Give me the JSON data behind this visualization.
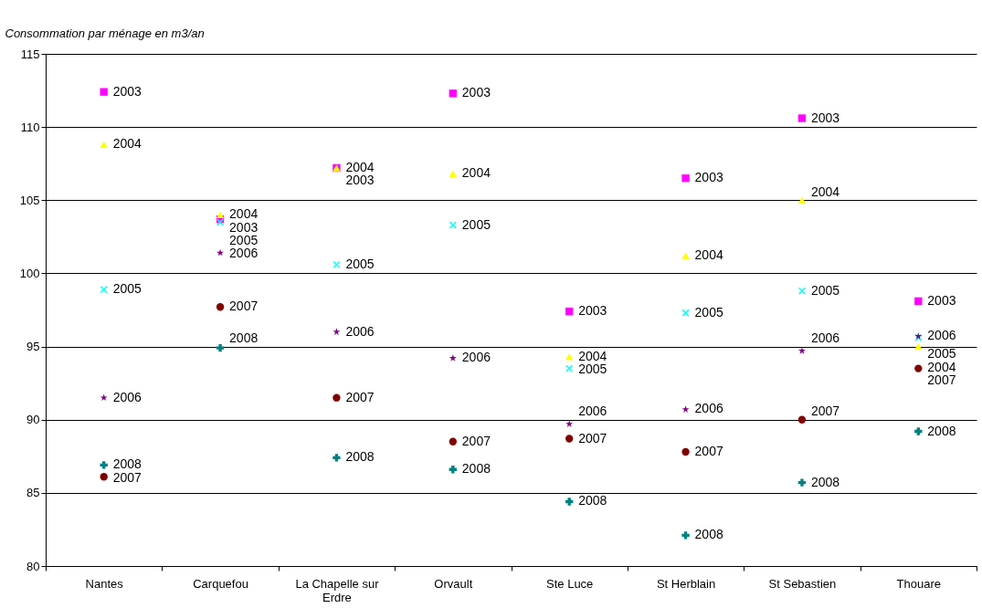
{
  "chart_data": {
    "type": "scatter",
    "ylabel": "Consommation par ménage en m3/an",
    "categories": [
      "Nantes",
      "Carquefou",
      "La Chapelle sur Erdre",
      "Orvault",
      "Ste Luce",
      "St Herblain",
      "St Sebastien",
      "Thouare"
    ],
    "series": [
      {
        "name": "2003",
        "color": "#ff00ff",
        "marker": "square",
        "values": [
          112.4,
          103.7,
          107.2,
          112.3,
          97.4,
          106.5,
          110.6,
          98.1
        ]
      },
      {
        "name": "2004",
        "color": "#ffff00",
        "marker": "triangle",
        "values": [
          108.8,
          104.0,
          107.2,
          106.8,
          94.3,
          101.2,
          105.0,
          95.0
        ]
      },
      {
        "name": "2005",
        "color": "#00ffff",
        "marker": "cross",
        "values": [
          98.9,
          103.5,
          100.6,
          103.3,
          93.5,
          97.3,
          98.8,
          95.6
        ]
      },
      {
        "name": "2006",
        "color": "#800080",
        "marker": "star",
        "values": [
          91.5,
          101.4,
          96.0,
          94.2,
          89.7,
          90.7,
          94.7,
          95.7
        ]
      },
      {
        "name": "2007",
        "color": "#800000",
        "marker": "circle",
        "values": [
          86.1,
          97.7,
          91.5,
          88.5,
          88.7,
          87.8,
          90.0,
          93.5
        ]
      },
      {
        "name": "2008",
        "color": "#008080",
        "marker": "plus",
        "values": [
          86.9,
          94.9,
          87.4,
          86.6,
          84.4,
          82.1,
          85.7,
          89.2
        ]
      }
    ],
    "ylim": [
      80,
      115
    ],
    "yticks": [
      80,
      85,
      90,
      95,
      100,
      105,
      110,
      115
    ],
    "grid": "y"
  }
}
